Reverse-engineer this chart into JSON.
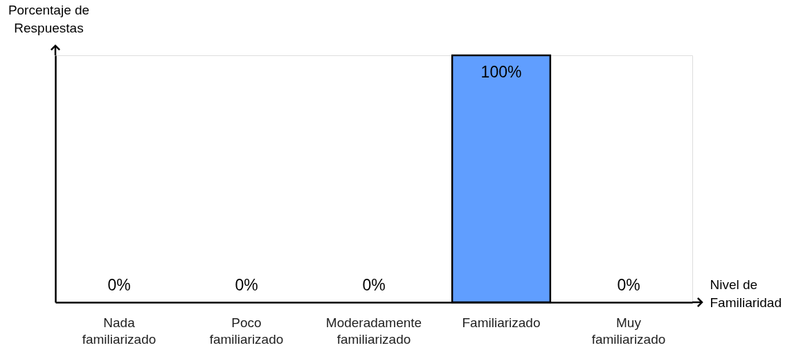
{
  "chart_data": {
    "type": "bar",
    "xlabel": "Nivel de\nFamiliaridad",
    "ylabel": "Porcentaje de\nRespuestas",
    "categories": [
      "Nada familiarizado",
      "Poco familiarizado",
      "Moderadamente familiarizado",
      "Familiarizado",
      "Muy familiarizado"
    ],
    "values": [
      0,
      0,
      0,
      100,
      0
    ],
    "value_labels": [
      "0%",
      "0%",
      "0%",
      "100%",
      "0%"
    ],
    "color": "#609eff",
    "grid": false
  }
}
